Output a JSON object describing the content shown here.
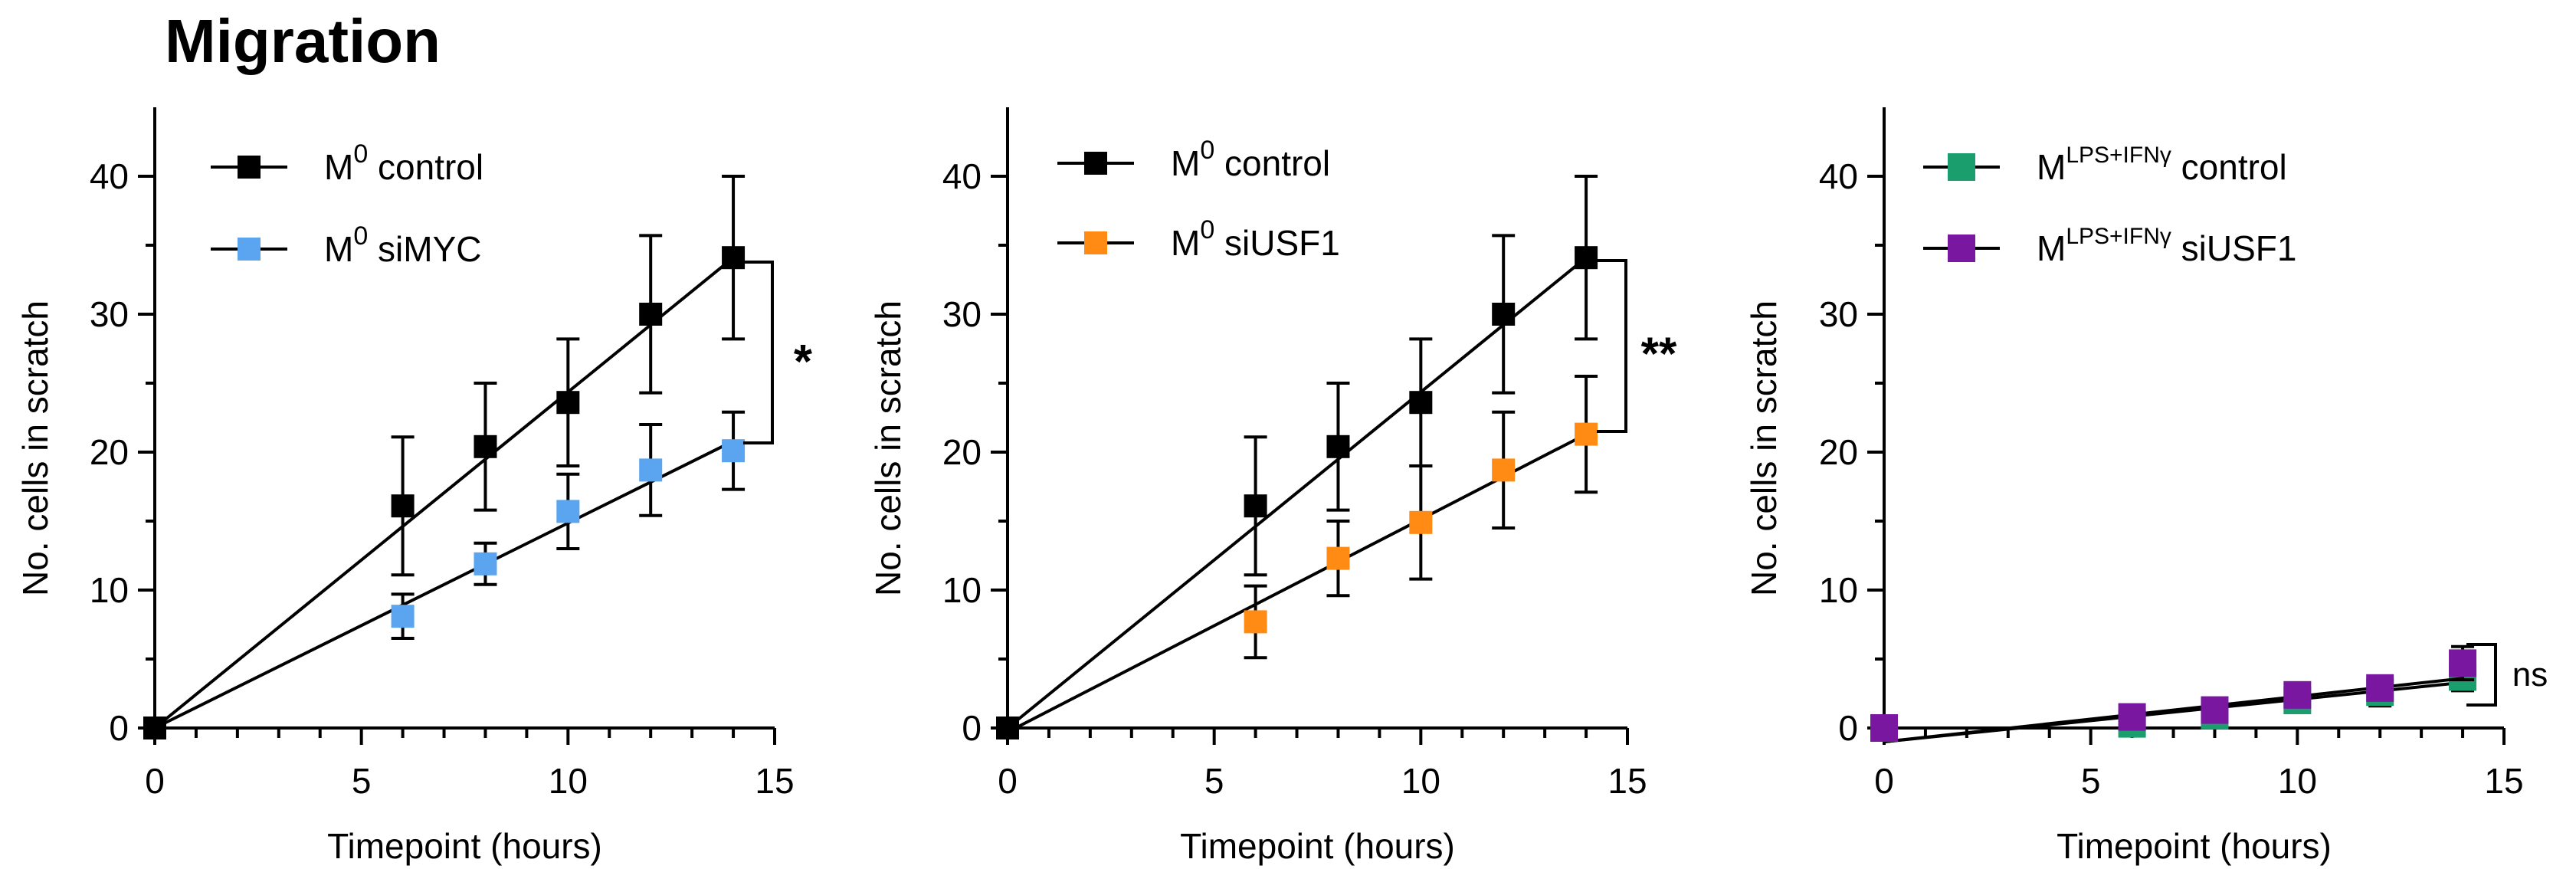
{
  "figure_title": "Migration",
  "colors": {
    "control": "#000000",
    "siMYC": "#5aa4f0",
    "siUSF1": "#ff8a14",
    "lps_control": "#1b9e6e",
    "lps_siUSF1": "#7a17a0"
  },
  "chart_data": [
    {
      "type": "scatter",
      "xlabel": "Timepoint (hours)",
      "ylabel": "No. cells in scratch",
      "xlim": [
        0,
        15
      ],
      "ylim": [
        0,
        45
      ],
      "xticks": [
        0,
        5,
        10,
        15
      ],
      "yticks": [
        0,
        10,
        20,
        30,
        40
      ],
      "legend_position": "top-left",
      "series": [
        {
          "name": "M⁰ control",
          "base": "M",
          "sup": "0",
          "rest": " control",
          "color_key": "control",
          "x": [
            0,
            6,
            8,
            10,
            12,
            14
          ],
          "y": [
            0,
            16.1,
            20.4,
            23.6,
            30.0,
            34.1
          ],
          "err": [
            0,
            5.0,
            4.6,
            4.6,
            5.7,
            5.9
          ],
          "fit": [
            0,
            34.1
          ]
        },
        {
          "name": "M⁰ siMYC",
          "base": "M",
          "sup": "0",
          "rest": " siMYC",
          "color_key": "siMYC",
          "x": [
            0,
            6,
            8,
            10,
            12,
            14
          ],
          "y": [
            0,
            8.1,
            11.9,
            15.7,
            18.7,
            20.1
          ],
          "err": [
            0,
            1.6,
            1.5,
            2.7,
            3.3,
            2.8
          ],
          "fit": [
            0,
            20.8
          ]
        }
      ],
      "significance": "*"
    },
    {
      "type": "scatter",
      "xlabel": "Timepoint (hours)",
      "ylabel": "No. cells in scratch",
      "xlim": [
        0,
        15
      ],
      "ylim": [
        0,
        45
      ],
      "xticks": [
        0,
        5,
        10,
        15
      ],
      "yticks": [
        0,
        10,
        20,
        30,
        40
      ],
      "legend_position": "top-left",
      "series": [
        {
          "name": "M⁰ control",
          "base": "M",
          "sup": "0",
          "rest": " control",
          "color_key": "control",
          "x": [
            0,
            6,
            8,
            10,
            12,
            14
          ],
          "y": [
            0,
            16.1,
            20.4,
            23.6,
            30.0,
            34.1
          ],
          "err": [
            0,
            5.0,
            4.6,
            4.6,
            5.7,
            5.9
          ],
          "fit": [
            0,
            34.1
          ]
        },
        {
          "name": "M⁰ siUSF1",
          "base": "M",
          "sup": "0",
          "rest": " siUSF1",
          "color_key": "siUSF1",
          "x": [
            0,
            6,
            8,
            10,
            12,
            14
          ],
          "y": [
            0,
            7.7,
            12.3,
            14.9,
            18.7,
            21.3
          ],
          "err": [
            0,
            2.6,
            2.7,
            4.1,
            4.2,
            4.2
          ],
          "fit": [
            -0.3,
            21.3
          ]
        }
      ],
      "significance": "**"
    },
    {
      "type": "scatter",
      "xlabel": "Timepoint (hours)",
      "ylabel": "No. cells in scratch",
      "xlim": [
        0,
        15
      ],
      "ylim": [
        0,
        45
      ],
      "xticks": [
        0,
        5,
        10,
        15
      ],
      "yticks": [
        0,
        10,
        20,
        30,
        40
      ],
      "legend_position": "top-left",
      "series": [
        {
          "name": "Mᴸᴾˢ⁺ᴵᶠᴺᵞ control",
          "base": "M",
          "sup": "LPS+IFNγ",
          "rest": " control",
          "color_key": "lps_control",
          "x": [
            0,
            6,
            8,
            10,
            12,
            14
          ],
          "y": [
            0,
            0.3,
            0.9,
            2.0,
            2.6,
            3.7
          ],
          "err": [
            0,
            0.4,
            0.5,
            0.7,
            1.0,
            1.0
          ],
          "fit": [
            -1.0,
            3.3
          ]
        },
        {
          "name": "Mᴸᴾˢ⁺ᴵᶠᴺᵞ siUSF1",
          "base": "M",
          "sup": "LPS+IFNγ",
          "rest": " siUSF1",
          "color_key": "lps_siUSF1",
          "x": [
            0,
            6,
            8,
            10,
            12,
            14
          ],
          "y": [
            0,
            0.8,
            1.3,
            2.4,
            2.9,
            4.7
          ],
          "err": [
            0,
            0.4,
            0.5,
            0.5,
            0.8,
            1.2
          ],
          "fit": [
            -1.0,
            3.6
          ]
        }
      ],
      "significance": "ns"
    }
  ]
}
